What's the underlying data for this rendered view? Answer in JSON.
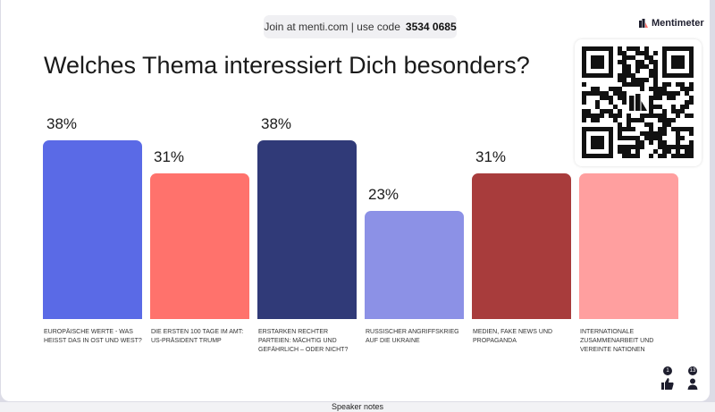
{
  "join": {
    "text": "Join at menti.com | use code",
    "code": "3534 0685"
  },
  "brand": {
    "name": "Mentimeter"
  },
  "question": {
    "title": "Welches Thema interessiert Dich besonders?"
  },
  "chart_data": {
    "type": "bar",
    "categories": [
      "EUROPÄISCHE WERTE - WAS HEISST DAS IN OST UND WEST?",
      "DIE ERSTEN 100 TAGE IM AMT: US-PRÄSIDENT TRUMP",
      "ERSTARKEN RECHTER PARTEIEN: MÄCHTIG UND GEFÄHRLICH – ODER NICHT?",
      "RUSSISCHER ANGRIFFSKRIEG AUF DIE UKRAINE",
      "MEDIEN, FAKE NEWS UND PROPAGANDA",
      "INTERNATIONALE ZUSAMMENARBEIT UND VEREINTE NATIONEN"
    ],
    "values": [
      38,
      31,
      38,
      23,
      31,
      null
    ],
    "value_labels": [
      "38%",
      "31%",
      "38%",
      "23%",
      "31%",
      ""
    ],
    "colors": [
      "#5a6ae6",
      "#ff726c",
      "#303a78",
      "#8c91e6",
      "#a83c3c",
      "#ff9f9f"
    ]
  },
  "reactions": {
    "likes": "1",
    "participants": "13"
  },
  "footer": {
    "speaker_notes": "Speaker notes"
  }
}
